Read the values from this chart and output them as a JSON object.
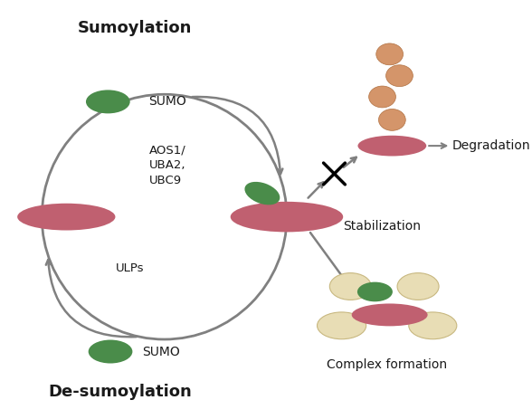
{
  "title": "Sumoylation",
  "subtitle": "De-sumoylation",
  "bg_color": "#ffffff",
  "arrow_color": "#808080",
  "sumo_green": "#4a8c4a",
  "protein_pink": "#c06070",
  "ubiquitin_orange": "#d4956a",
  "partner_tan": "#e8ddb5",
  "text_color": "#1a1a1a",
  "labels": {
    "sumo_top": "SUMO",
    "enzyme": "AOS1/\nUBA2,\nUBC9",
    "ulps": "ULPs",
    "sumo_bottom": "SUMO",
    "stabilization": "Stabilization",
    "degradation": "Degradation",
    "complex": "Complex formation"
  }
}
